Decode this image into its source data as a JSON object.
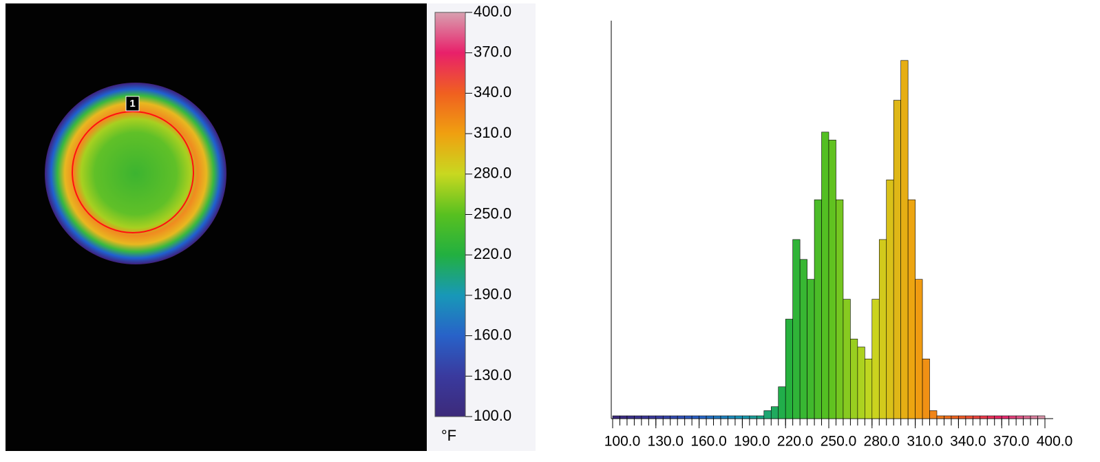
{
  "thermal_image": {
    "roi_label": "1"
  },
  "color_scale": {
    "unit": "°F",
    "range": [
      100,
      400
    ],
    "ticks": [
      {
        "value": 100,
        "label": "100.0"
      },
      {
        "value": 130,
        "label": "130.0"
      },
      {
        "value": 160,
        "label": "160.0"
      },
      {
        "value": 190,
        "label": "190.0"
      },
      {
        "value": 220,
        "label": "220.0"
      },
      {
        "value": 250,
        "label": "250.0"
      },
      {
        "value": 280,
        "label": "280.0"
      },
      {
        "value": 310,
        "label": "310.0"
      },
      {
        "value": 340,
        "label": "340.0"
      },
      {
        "value": 370,
        "label": "370.0"
      },
      {
        "value": 400,
        "label": "400.0"
      }
    ],
    "colormap": [
      "#3c2a7a",
      "#3a3a9e",
      "#2862c8",
      "#1898b8",
      "#22b040",
      "#58c020",
      "#c8d820",
      "#f0a010",
      "#f06020",
      "#e8206a",
      "#d8a0b0"
    ]
  },
  "chart_data": {
    "type": "histogram",
    "bins": [
      100,
      105,
      110,
      115,
      120,
      125,
      130,
      135,
      140,
      145,
      150,
      155,
      160,
      165,
      170,
      175,
      180,
      185,
      190,
      195,
      200,
      205,
      210,
      215,
      220,
      225,
      230,
      235,
      240,
      245,
      250,
      255,
      260,
      265,
      270,
      275,
      280,
      285,
      290,
      295,
      300,
      305,
      310,
      315,
      320,
      325,
      330,
      335,
      340,
      345,
      350,
      355,
      360,
      365,
      370,
      375,
      380,
      385,
      390,
      395,
      400
    ],
    "values": [
      0.7,
      0.7,
      0.7,
      0.7,
      0.7,
      0.7,
      0.7,
      0.7,
      0.7,
      0.7,
      0.7,
      0.7,
      0.7,
      0.7,
      0.7,
      0.7,
      0.7,
      0.7,
      0.7,
      0.7,
      0.7,
      2,
      3,
      8,
      25,
      45,
      40,
      35,
      55,
      72,
      70,
      55,
      30,
      20,
      18,
      15,
      30,
      45,
      60,
      80,
      90,
      55,
      35,
      15,
      2,
      0.7,
      0.7,
      0.7,
      0.7,
      0.7,
      0.7,
      0.7,
      0.7,
      0.7,
      0.7,
      0.7,
      0.7,
      0.7,
      0.7,
      0.7
    ],
    "xlim": [
      100,
      400
    ],
    "ylim": [
      0,
      100
    ],
    "xticks": [
      {
        "value": 100,
        "label": "100.0"
      },
      {
        "value": 130,
        "label": "130.0"
      },
      {
        "value": 160,
        "label": "160.0"
      },
      {
        "value": 190,
        "label": "190.0"
      },
      {
        "value": 220,
        "label": "220.0"
      },
      {
        "value": 250,
        "label": "250.0"
      },
      {
        "value": 280,
        "label": "280.0"
      },
      {
        "value": 310,
        "label": "310.0"
      },
      {
        "value": 340,
        "label": "340.0"
      },
      {
        "value": 370,
        "label": "370.0"
      },
      {
        "value": 400,
        "label": "400.0"
      }
    ]
  }
}
